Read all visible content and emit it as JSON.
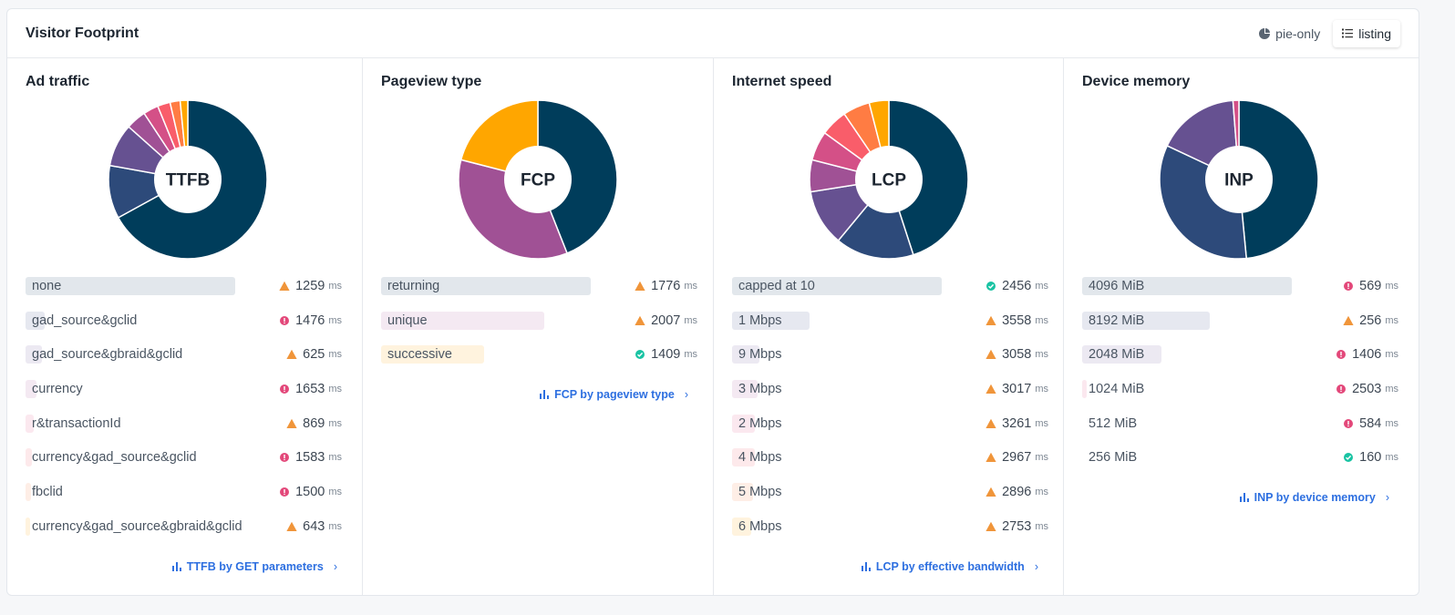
{
  "header": {
    "title": "Visitor Footprint",
    "toggle": [
      {
        "label": "pie-only",
        "icon": "pie-chart-icon",
        "active": false
      },
      {
        "label": "listing",
        "icon": "list-icon",
        "active": true
      }
    ]
  },
  "colors": {
    "warning": "#f0953a",
    "error": "#e3487a",
    "good": "#19c3a3",
    "link": "#2d6fe0"
  },
  "panels": [
    {
      "id": "ad-traffic",
      "title": "Ad traffic",
      "metric": "TTFB",
      "link": "TTFB by GET parameters",
      "slices": [
        {
          "value": 65,
          "color": "#003d5b"
        },
        {
          "value": 10.5,
          "color": "#2d4a7a"
        },
        {
          "value": 8.5,
          "color": "#665191"
        },
        {
          "value": 4,
          "color": "#a05195"
        },
        {
          "value": 3,
          "color": "#d45087"
        },
        {
          "value": 2.5,
          "color": "#f95d6a"
        },
        {
          "value": 2,
          "color": "#ff7c43"
        },
        {
          "value": 1.5,
          "color": "#ffa600"
        }
      ],
      "rows": [
        {
          "label": "none",
          "share": 1.0,
          "status": "warning",
          "value": "1259",
          "unit": "ms"
        },
        {
          "label": "gad_source&gclid",
          "share": 0.09,
          "status": "error",
          "value": "1476",
          "unit": "ms"
        },
        {
          "label": "gad_source&gbraid&gclid",
          "share": 0.08,
          "status": "warning",
          "value": "625",
          "unit": "ms"
        },
        {
          "label": "currency",
          "share": 0.05,
          "status": "error",
          "value": "1653",
          "unit": "ms"
        },
        {
          "label": "r&transactionId",
          "share": 0.04,
          "status": "warning",
          "value": "869",
          "unit": "ms"
        },
        {
          "label": "currency&gad_source&gclid",
          "share": 0.03,
          "status": "error",
          "value": "1583",
          "unit": "ms"
        },
        {
          "label": "fbclid",
          "share": 0.025,
          "status": "error",
          "value": "1500",
          "unit": "ms"
        },
        {
          "label": "currency&gad_source&gbraid&gclid",
          "share": 0.02,
          "status": "warning",
          "value": "643",
          "unit": "ms"
        }
      ]
    },
    {
      "id": "pageview-type",
      "title": "Pageview type",
      "metric": "FCP",
      "link": "FCP by pageview type",
      "slices": [
        {
          "value": 44,
          "color": "#003d5b"
        },
        {
          "value": 35,
          "color": "#a05195"
        },
        {
          "value": 21,
          "color": "#ffa600"
        }
      ],
      "rows": [
        {
          "label": "returning",
          "share": 1.0,
          "status": "warning",
          "value": "1776",
          "unit": "ms"
        },
        {
          "label": "unique",
          "share": 0.78,
          "status": "warning",
          "value": "2007",
          "unit": "ms"
        },
        {
          "label": "successive",
          "share": 0.49,
          "status": "good",
          "value": "1409",
          "unit": "ms"
        }
      ]
    },
    {
      "id": "internet-speed",
      "title": "Internet speed",
      "metric": "LCP",
      "link": "LCP by effective bandwidth",
      "slices": [
        {
          "value": 45,
          "color": "#003d5b"
        },
        {
          "value": 16,
          "color": "#2d4a7a"
        },
        {
          "value": 11.5,
          "color": "#665191"
        },
        {
          "value": 6.5,
          "color": "#a05195"
        },
        {
          "value": 6,
          "color": "#d45087"
        },
        {
          "value": 5.5,
          "color": "#f95d6a"
        },
        {
          "value": 5.5,
          "color": "#ff7c43"
        },
        {
          "value": 4,
          "color": "#ffa600"
        }
      ],
      "rows": [
        {
          "label": "capped at 10",
          "share": 1.0,
          "status": "good",
          "value": "2456",
          "unit": "ms"
        },
        {
          "label": "1 Mbps",
          "share": 0.37,
          "status": "warning",
          "value": "3558",
          "unit": "ms"
        },
        {
          "label": "9 Mbps",
          "share": 0.13,
          "status": "warning",
          "value": "3058",
          "unit": "ms"
        },
        {
          "label": "3 Mbps",
          "share": 0.12,
          "status": "warning",
          "value": "3017",
          "unit": "ms"
        },
        {
          "label": "2 Mbps",
          "share": 0.11,
          "status": "warning",
          "value": "3261",
          "unit": "ms"
        },
        {
          "label": "4 Mbps",
          "share": 0.11,
          "status": "warning",
          "value": "2967",
          "unit": "ms"
        },
        {
          "label": "5 Mbps",
          "share": 0.1,
          "status": "warning",
          "value": "2896",
          "unit": "ms"
        },
        {
          "label": "6 Mbps",
          "share": 0.09,
          "status": "warning",
          "value": "2753",
          "unit": "ms"
        }
      ]
    },
    {
      "id": "device-memory",
      "title": "Device memory",
      "metric": "INP",
      "link": "INP by device memory",
      "slices": [
        {
          "value": 48.5,
          "color": "#003d5b"
        },
        {
          "value": 33.5,
          "color": "#2d4a7a"
        },
        {
          "value": 16.8,
          "color": "#665191"
        },
        {
          "value": 1.2,
          "color": "#d45087"
        }
      ],
      "rows": [
        {
          "label": "4096 MiB",
          "share": 1.0,
          "status": "error",
          "value": "569",
          "unit": "ms"
        },
        {
          "label": "8192 MiB",
          "share": 0.61,
          "status": "warning",
          "value": "256",
          "unit": "ms"
        },
        {
          "label": "2048 MiB",
          "share": 0.38,
          "status": "error",
          "value": "1406",
          "unit": "ms"
        },
        {
          "label": "1024 MiB",
          "share": 0.02,
          "status": "error",
          "value": "2503",
          "unit": "ms"
        },
        {
          "label": "512 MiB",
          "share": 0.0,
          "status": "error",
          "value": "584",
          "unit": "ms"
        },
        {
          "label": "256 MiB",
          "share": 0.0,
          "status": "good",
          "value": "160",
          "unit": "ms"
        }
      ]
    }
  ]
}
